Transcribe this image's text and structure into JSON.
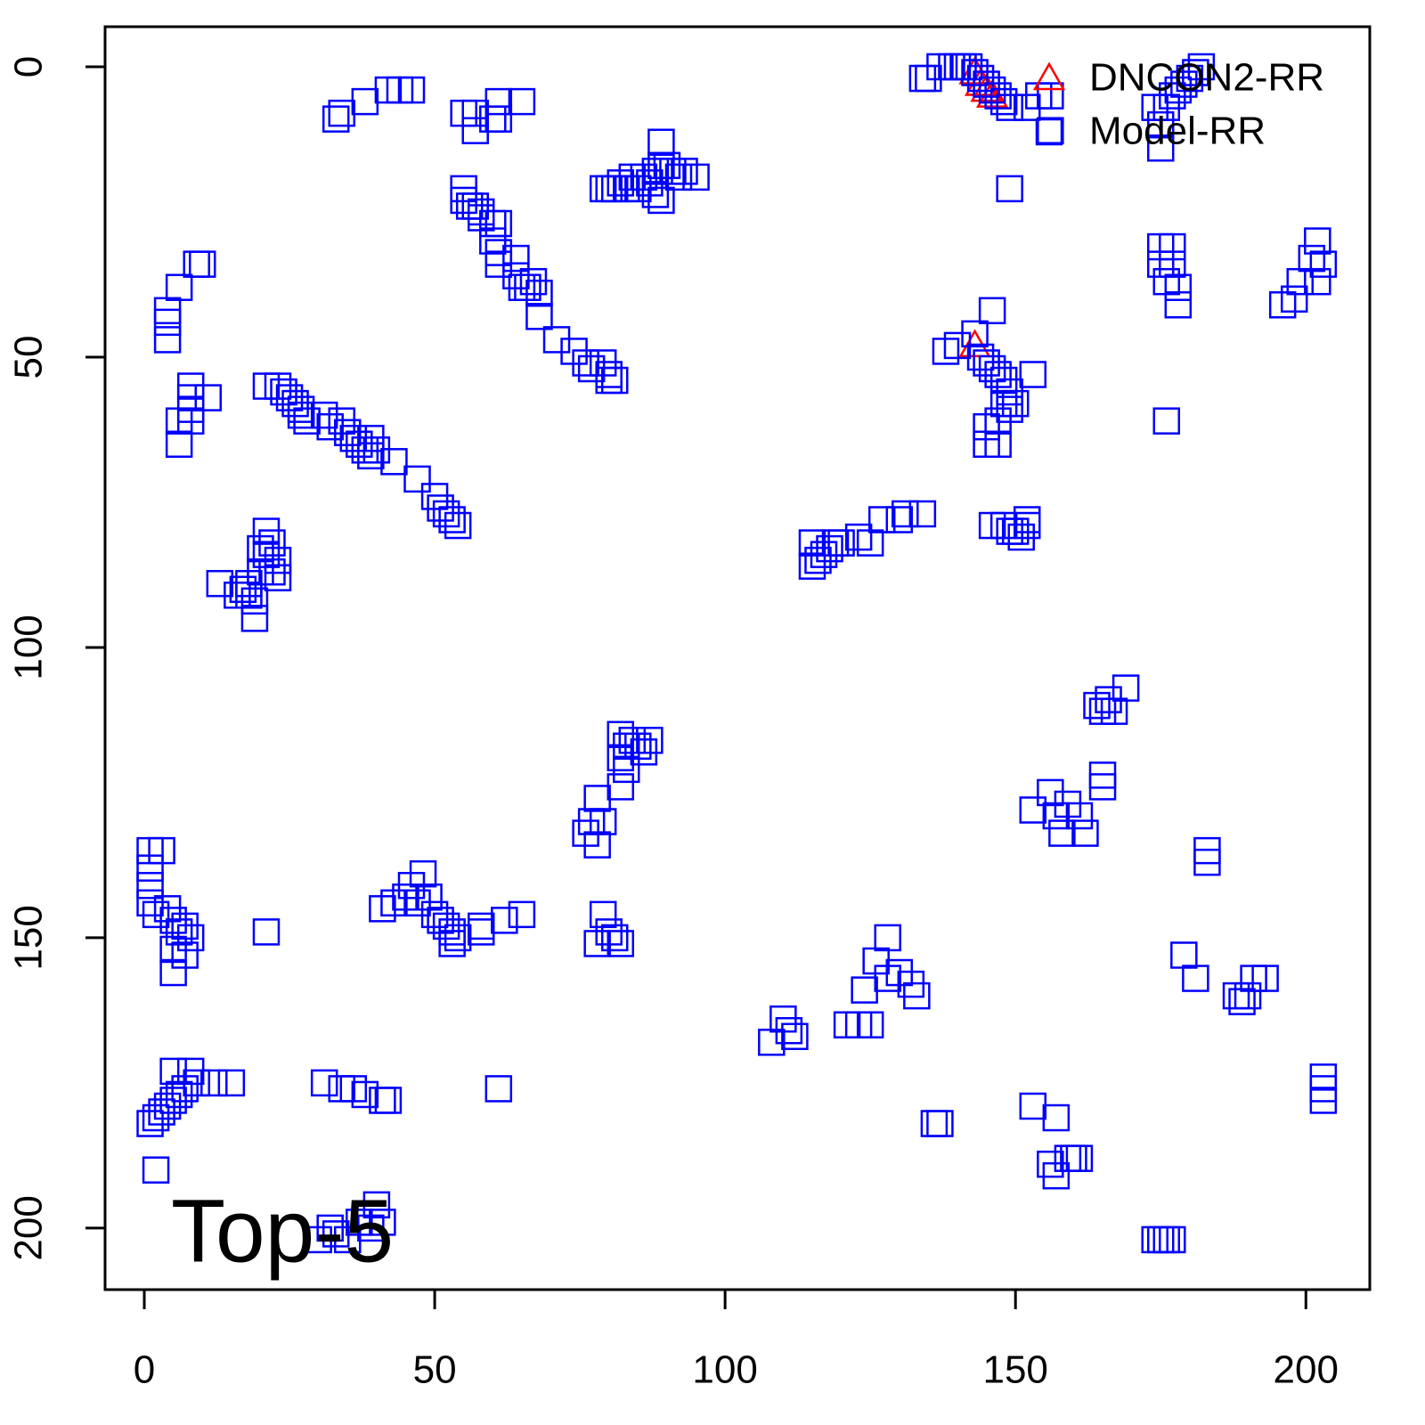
{
  "chart_data": {
    "type": "scatter",
    "annotation": "Top-5",
    "xlim": [
      -6.75,
      211.0
    ],
    "ylim": [
      210.6,
      -6.9
    ],
    "xticks": [
      0,
      50,
      100,
      150,
      200
    ],
    "yticks": [
      0,
      50,
      100,
      150,
      200
    ],
    "legend": "topright",
    "series": [
      {
        "name": "DNCON2-RR",
        "color": "#ff0000",
        "marker": "triangle",
        "x": [
          143,
          144,
          145,
          146,
          143
        ],
        "y": [
          1,
          3,
          4,
          5,
          48
        ]
      },
      {
        "name": "Model-RR",
        "color": "#0000ff",
        "marker": "square",
        "x": [
          134,
          135,
          137,
          139,
          140,
          141,
          142,
          143,
          144,
          145,
          146,
          147,
          148,
          149,
          152,
          154,
          156,
          156,
          149,
          174,
          175,
          175,
          176,
          177,
          178,
          179,
          180,
          181,
          182,
          33,
          34,
          38,
          42,
          44,
          46,
          55,
          57,
          57,
          60,
          61,
          61,
          65,
          79,
          80,
          81,
          82,
          83,
          84,
          85,
          86,
          87,
          88,
          89,
          90,
          91,
          92,
          93,
          95,
          89,
          88,
          89,
          55,
          55,
          56,
          57,
          58,
          58,
          60,
          61,
          60,
          61,
          61,
          64,
          64,
          65,
          66,
          67,
          68,
          68,
          71,
          74,
          76,
          77,
          79,
          80,
          80,
          81,
          10,
          9,
          6,
          4,
          4,
          4,
          8,
          8,
          8,
          6,
          8,
          11,
          6,
          21,
          23,
          24,
          25,
          26,
          27,
          27,
          28,
          31,
          32,
          34,
          35,
          36,
          37,
          38,
          39,
          39,
          40,
          43,
          47,
          50,
          51,
          52,
          53,
          54,
          13,
          16,
          17,
          18,
          18,
          19,
          19,
          20,
          20,
          21,
          21,
          22,
          22,
          23,
          23,
          143,
          146,
          140,
          138,
          144,
          145,
          146,
          147,
          148,
          149,
          148,
          149,
          150,
          147,
          145,
          145,
          147,
          153,
          175,
          177,
          175,
          177,
          176,
          178,
          178,
          176,
          202,
          201,
          203,
          199,
          198,
          196,
          202,
          115,
          115,
          116,
          117,
          118,
          119,
          120,
          123,
          125,
          127,
          130,
          131,
          134,
          146,
          148,
          149,
          150,
          151,
          152,
          152,
          82,
          83,
          84,
          85,
          86,
          87,
          82,
          83,
          82,
          78,
          77,
          79,
          76,
          78,
          164,
          165,
          166,
          167,
          169,
          165,
          165,
          153,
          156,
          157,
          158,
          159,
          161,
          162,
          183,
          183,
          1,
          1,
          1,
          1,
          2,
          3,
          4,
          5,
          6,
          7,
          8,
          5,
          5,
          7,
          21,
          41,
          43,
          45,
          46,
          47,
          48,
          49,
          50,
          51,
          52,
          53,
          53,
          54,
          58,
          58,
          62,
          65,
          79,
          80,
          81,
          82,
          78,
          128,
          126,
          128,
          130,
          132,
          133,
          124,
          110,
          111,
          108,
          112,
          121,
          123,
          125,
          179,
          181,
          188,
          189,
          190,
          191,
          193,
          203,
          203,
          203,
          153,
          157,
          136,
          137,
          156,
          157,
          159,
          160,
          161,
          174,
          175,
          176,
          177,
          1,
          2,
          3,
          4,
          5,
          6,
          7,
          9,
          12,
          15,
          5,
          8,
          2,
          31,
          34,
          36,
          38,
          41,
          42,
          61,
          40,
          41,
          32,
          33,
          35,
          37,
          39,
          30
        ],
        "y": [
          2,
          2,
          0,
          0,
          0,
          0,
          0,
          1,
          2,
          3,
          4,
          5,
          6,
          7,
          7,
          5,
          5,
          11,
          21,
          7,
          10,
          14,
          7,
          5,
          4,
          3,
          2,
          1,
          0,
          9,
          8,
          6,
          4,
          4,
          4,
          8,
          8,
          11,
          9,
          6,
          9,
          6,
          21,
          21,
          21,
          20,
          21,
          19,
          21,
          19,
          20,
          18,
          17,
          17,
          18,
          19,
          18,
          19,
          13,
          22,
          23,
          21,
          23,
          24,
          24,
          25,
          26,
          27,
          27,
          30,
          32,
          34,
          33,
          36,
          38,
          38,
          37,
          39,
          43,
          47,
          49,
          51,
          52,
          51,
          53,
          54,
          54,
          34,
          34,
          38,
          42,
          44,
          47,
          55,
          57,
          59,
          61,
          61,
          57,
          65,
          55,
          55,
          56,
          57,
          58,
          59,
          60,
          61,
          60,
          62,
          61,
          63,
          64,
          65,
          66,
          64,
          67,
          66,
          68,
          71,
          74,
          76,
          77,
          78,
          79,
          89,
          91,
          90,
          89,
          91,
          92,
          95,
          87,
          83,
          80,
          84,
          82,
          87,
          85,
          88,
          46,
          42,
          48,
          49,
          50,
          51,
          52,
          53,
          54,
          56,
          58,
          59,
          58,
          61,
          62,
          65,
          65,
          53,
          31,
          31,
          34,
          34,
          37,
          38,
          41,
          61,
          30,
          33,
          34,
          37,
          40,
          41,
          37,
          82,
          86,
          85,
          84,
          83,
          82,
          82,
          81,
          82,
          78,
          78,
          77,
          77,
          79,
          79,
          80,
          80,
          81,
          79,
          78,
          115,
          117,
          116,
          117,
          118,
          116,
          119,
          121,
          124,
          126,
          130,
          130,
          132,
          134,
          110,
          111,
          109,
          111,
          107,
          122,
          124,
          128,
          125,
          129,
          132,
          127,
          129,
          132,
          135,
          137,
          135,
          138,
          141,
          144,
          146,
          135,
          145,
          147,
          149,
          148,
          150,
          152,
          156,
          153,
          149,
          145,
          144,
          143,
          141,
          144,
          139,
          143,
          146,
          147,
          148,
          149,
          151,
          150,
          149,
          148,
          147,
          146,
          146,
          149,
          150,
          151,
          151,
          150,
          154,
          157,
          156,
          158,
          160,
          159,
          164,
          166,
          168,
          167,
          165,
          165,
          165,
          153,
          157,
          160,
          161,
          160,
          157,
          157,
          174,
          176,
          178,
          179,
          181,
          182,
          182,
          189,
          191,
          188,
          188,
          188,
          202,
          202,
          202,
          202,
          182,
          181,
          180,
          179,
          178,
          177,
          176,
          175,
          175,
          175,
          173,
          173,
          190,
          175,
          176,
          176,
          177,
          178,
          178,
          176,
          196,
          199,
          200,
          201,
          202,
          199,
          200,
          202
        ]
      }
    ]
  }
}
